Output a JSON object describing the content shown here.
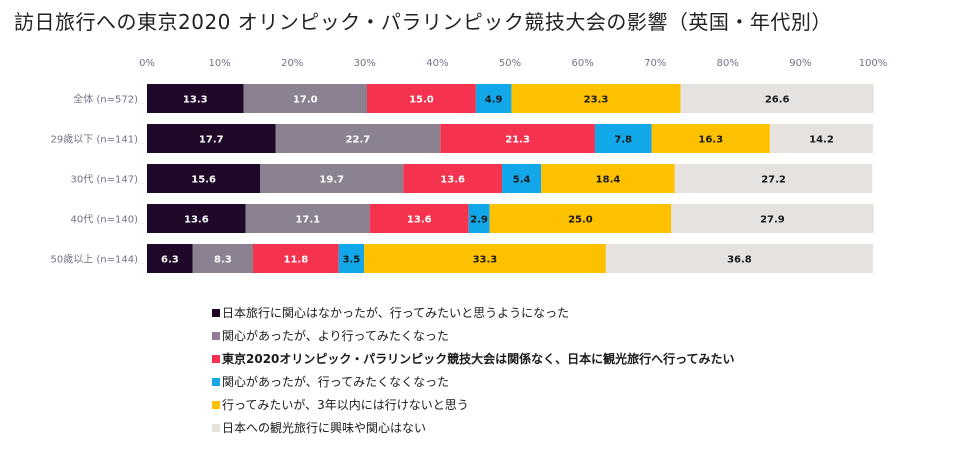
{
  "chart_data": {
    "type": "bar",
    "orientation": "horizontal",
    "stacked": true,
    "title": "訪日旅行への東京2020 オリンピック・パラリンピック競技大会の影響（英国・年代別）",
    "xlim": [
      0,
      100
    ],
    "x_ticks": [
      "0%",
      "10%",
      "20%",
      "30%",
      "40%",
      "50%",
      "60%",
      "70%",
      "80%",
      "90%",
      "100%"
    ],
    "grid": false,
    "legend_position": "bottom",
    "categories": [
      "全体 (n=572)",
      "29歳以下 (n=141)",
      "30代 (n=147)",
      "40代 (n=140)",
      "50歳以上 (n=144)"
    ],
    "series": [
      {
        "name": "日本旅行に関心はなかったが、行ってみたいと思うようになった",
        "color": "#1e0a28",
        "label_color": "#ffffff",
        "values": [
          13.3,
          17.7,
          15.6,
          13.6,
          6.3
        ]
      },
      {
        "name": "関心があったが、より行ってみたくなった",
        "color": "#8c8190",
        "label_color": "#ffffff",
        "values": [
          17.0,
          22.7,
          19.7,
          17.1,
          8.3
        ]
      },
      {
        "name": "東京2020オリンピック・パラリンピック競技大会は関係なく、日本に観光旅行へ行ってみたい",
        "color": "#f5334f",
        "label_color": "#ffffff",
        "values": [
          15.0,
          21.3,
          13.6,
          13.6,
          11.8
        ],
        "legend_bold": true
      },
      {
        "name": "関心があったが、行ってみたくなくなった",
        "color": "#11a7e9",
        "label_color": "#1a1a1a",
        "values": [
          4.9,
          7.8,
          5.4,
          2.9,
          3.5
        ]
      },
      {
        "name": "行ってみたいが、3年以内には行けないと思う",
        "color": "#fdc100",
        "label_color": "#1a1a1a",
        "values": [
          23.3,
          16.3,
          18.4,
          25.0,
          33.3
        ]
      },
      {
        "name": "日本への観光旅行に興味や関心はない",
        "color": "#e5e2e0",
        "label_color": "#1a1a1a",
        "values": [
          26.6,
          14.2,
          27.2,
          27.9,
          36.8
        ]
      }
    ]
  }
}
